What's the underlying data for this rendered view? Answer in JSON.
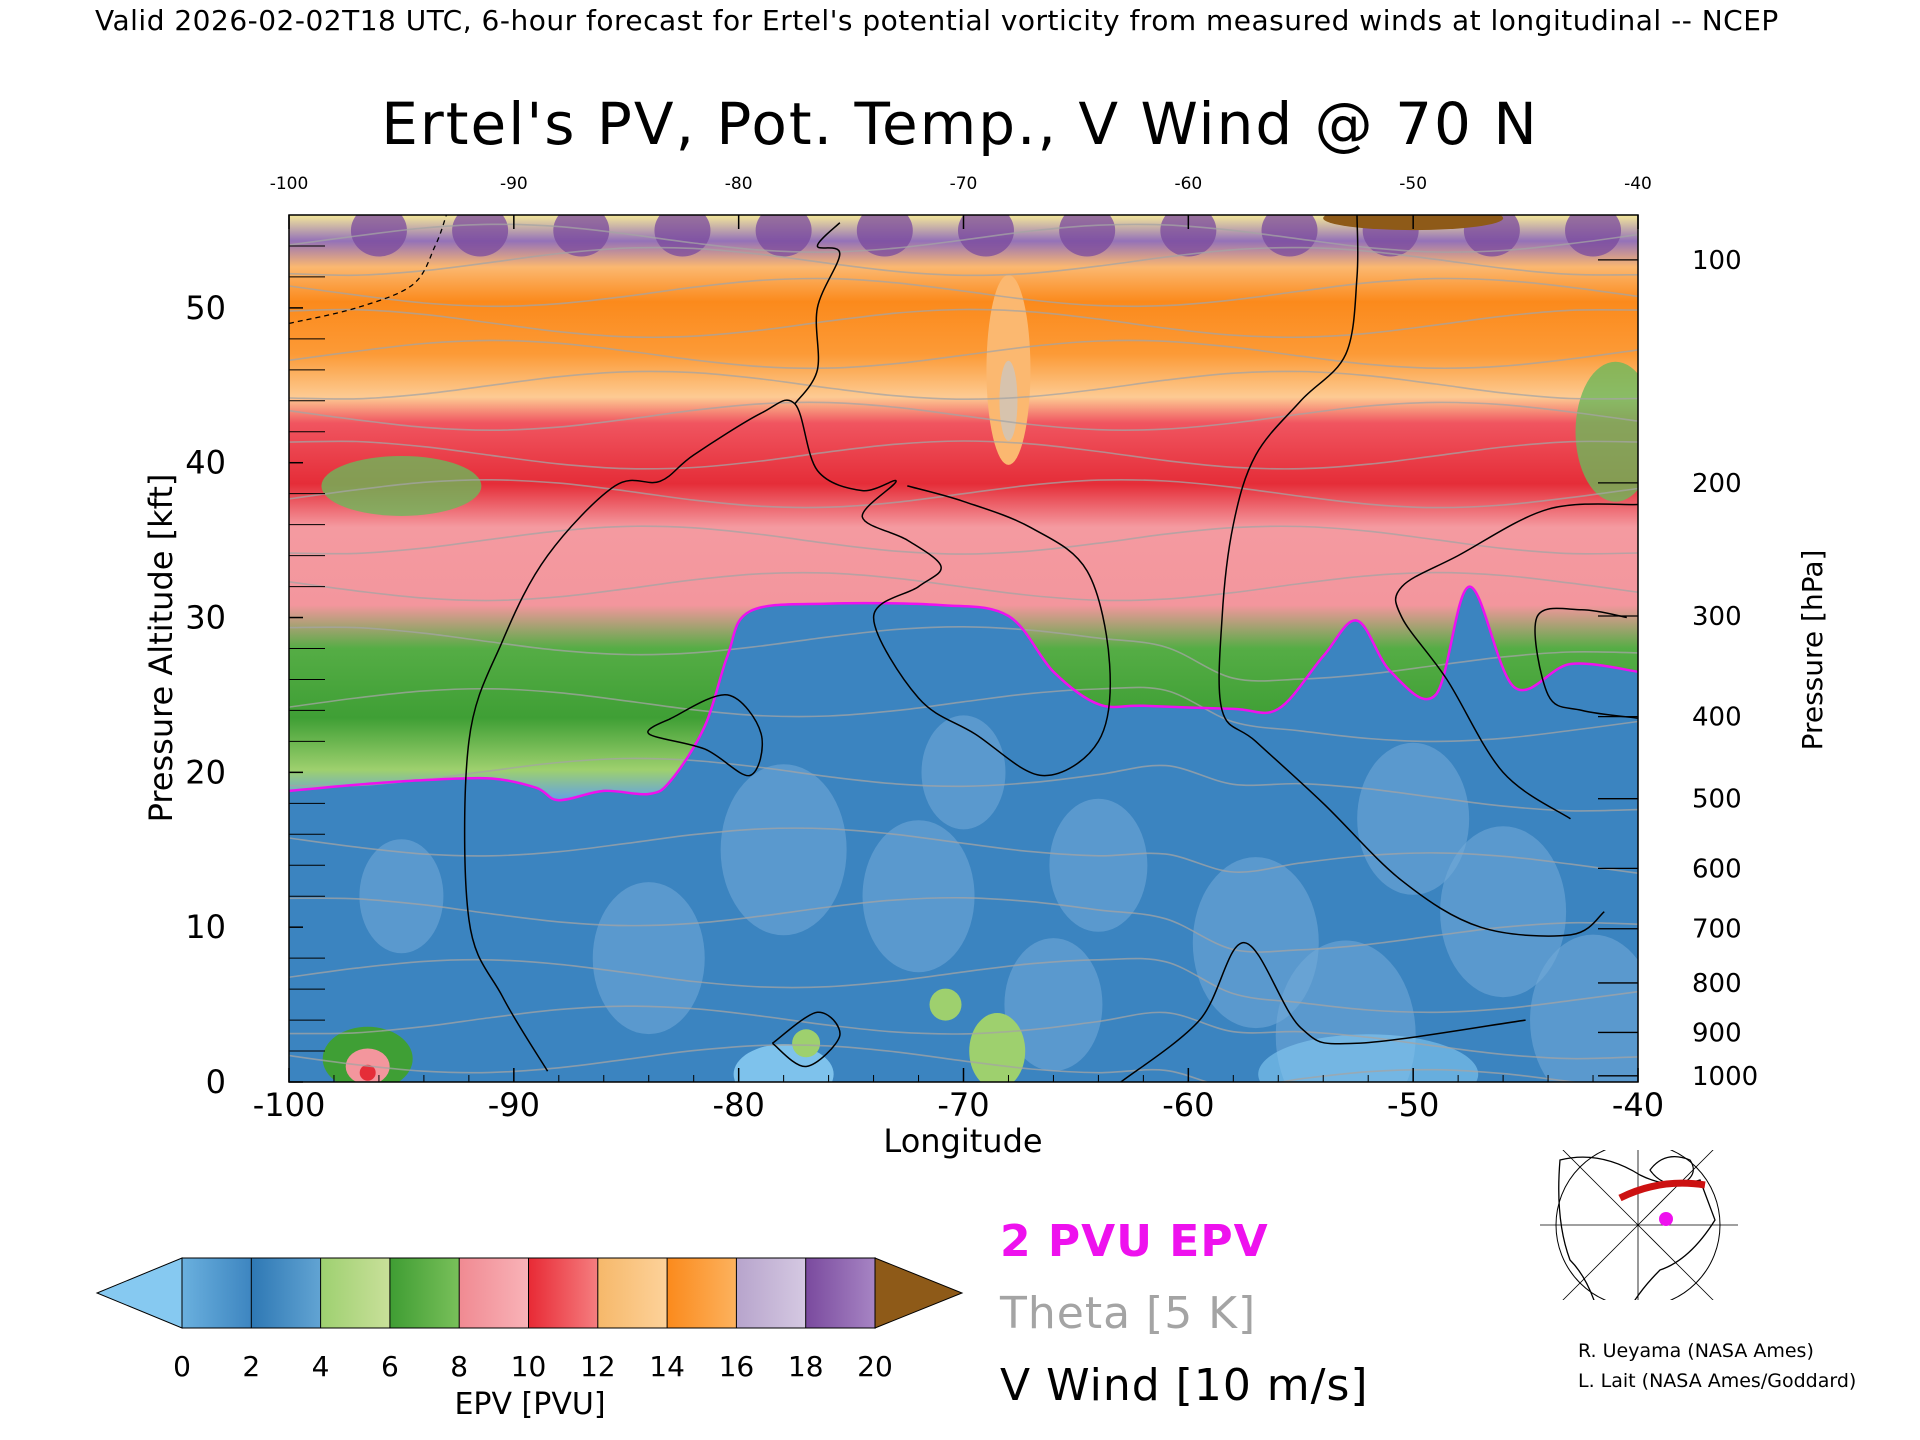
{
  "header": "Valid 2026-02-02T18 UTC, 6-hour forecast for Ertel's potential vorticity from measured winds at longitudinal -- NCEP",
  "chart_data": {
    "type": "heatmap",
    "title": "Ertel's PV, Pot. Temp., V Wind @ 70 N",
    "xlabel": "Longitude",
    "ylabel": "Pressure Altitude [kft]",
    "y2label": "Pressure [hPa]",
    "xlim": [
      -100,
      -40
    ],
    "ylim": [
      0,
      56
    ],
    "x_ticks": [
      -100,
      -90,
      -80,
      -70,
      -60,
      -50,
      -40
    ],
    "y_ticks": [
      0,
      10,
      20,
      30,
      40,
      50
    ],
    "pressure_ticks": [
      {
        "label": "100",
        "kft": 53.1
      },
      {
        "label": "200",
        "kft": 38.7
      },
      {
        "label": "300",
        "kft": 30.1
      },
      {
        "label": "400",
        "kft": 23.6
      },
      {
        "label": "500",
        "kft": 18.3
      },
      {
        "label": "600",
        "kft": 13.8
      },
      {
        "label": "700",
        "kft": 9.9
      },
      {
        "label": "800",
        "kft": 6.4
      },
      {
        "label": "900",
        "kft": 3.2
      },
      {
        "label": "1000",
        "kft": 0.4
      }
    ],
    "pv_2pvu_contour": [
      [
        -100,
        18.8
      ],
      [
        -97,
        19.2
      ],
      [
        -94,
        19.5
      ],
      [
        -91,
        19.6
      ],
      [
        -89,
        19.0
      ],
      [
        -88,
        18.2
      ],
      [
        -86,
        18.8
      ],
      [
        -84,
        18.6
      ],
      [
        -83,
        19.5
      ],
      [
        -81.5,
        23
      ],
      [
        -80.5,
        27.5
      ],
      [
        -79.5,
        30.4
      ],
      [
        -76,
        30.9
      ],
      [
        -71,
        30.8
      ],
      [
        -68,
        30.1
      ],
      [
        -66,
        26.5
      ],
      [
        -64,
        24.4
      ],
      [
        -62,
        24.3
      ],
      [
        -58,
        24.1
      ],
      [
        -56,
        24.1
      ],
      [
        -54,
        27.5
      ],
      [
        -52.5,
        29.8
      ],
      [
        -51,
        26.5
      ],
      [
        -49,
        25.0
      ],
      [
        -47.5,
        32.0
      ],
      [
        -45.5,
        25.5
      ],
      [
        -43,
        27.0
      ],
      [
        -40,
        26.5
      ]
    ],
    "wind_zero_contour": [
      [
        -88.5,
        0.7
      ],
      [
        -90.5,
        5.5
      ],
      [
        -92,
        10.5
      ],
      [
        -92,
        22.0
      ],
      [
        -90.5,
        28.5
      ],
      [
        -88.5,
        34.0
      ],
      [
        -85.5,
        38.5
      ],
      [
        -83.5,
        38.8
      ],
      [
        -82,
        40.5
      ],
      [
        -79,
        43.2
      ],
      [
        -77.5,
        43.8
      ],
      [
        -76.5,
        39.5
      ],
      [
        -74.5,
        38.2
      ],
      [
        -73,
        38.8
      ],
      [
        -74.5,
        36.5
      ],
      [
        -72.5,
        35.0
      ],
      [
        -71,
        33.3
      ],
      [
        -72,
        32.0
      ],
      [
        -74,
        30.0
      ],
      [
        -72,
        24.8
      ],
      [
        -69.5,
        22.5
      ],
      [
        -66.5,
        19.8
      ],
      [
        -64,
        22.0
      ],
      [
        -63.5,
        27.0
      ],
      [
        -64.5,
        33.0
      ],
      [
        -67,
        35.8
      ],
      [
        -70,
        37.5
      ],
      [
        -72.5,
        38.5
      ]
    ],
    "theta_levels_K": [
      260,
      270,
      280,
      290,
      300,
      310,
      320,
      330,
      340,
      350,
      360,
      370,
      380
    ],
    "pv_colorbar": {
      "label": "EPV [PVU]",
      "ticks": [
        0,
        2,
        4,
        6,
        8,
        10,
        12,
        14,
        16,
        18,
        20
      ],
      "colors": [
        "#6ab0de",
        "#3d85c0",
        "#2e78b4",
        "#62a4d3",
        "#9ed070",
        "#c9e09a",
        "#3f9d33",
        "#79c05a",
        "#f08a92",
        "#f9b3b8",
        "#e82a35",
        "#f57e80",
        "#f6b86a",
        "#fdd29a",
        "#fb8a1c",
        "#fcb25e",
        "#b7a4cc",
        "#d5c9e2",
        "#7a4a9e",
        "#a785c4",
        "#f6e78a",
        "#fcf7c4"
      ],
      "under_color": "#86c9f1",
      "over_color": "#8e5a18"
    },
    "legend": [
      {
        "label": "2 PVU EPV",
        "color": "#ee11ee"
      },
      {
        "label": "Theta [5 K]",
        "color": "#a4a4a4"
      },
      {
        "label": "V Wind [10 m/s]",
        "color": "#000000"
      }
    ],
    "grid": false
  },
  "credits": [
    "R. Ueyama (NASA Ames)",
    "L. Lait (NASA Ames/Goddard)"
  ]
}
